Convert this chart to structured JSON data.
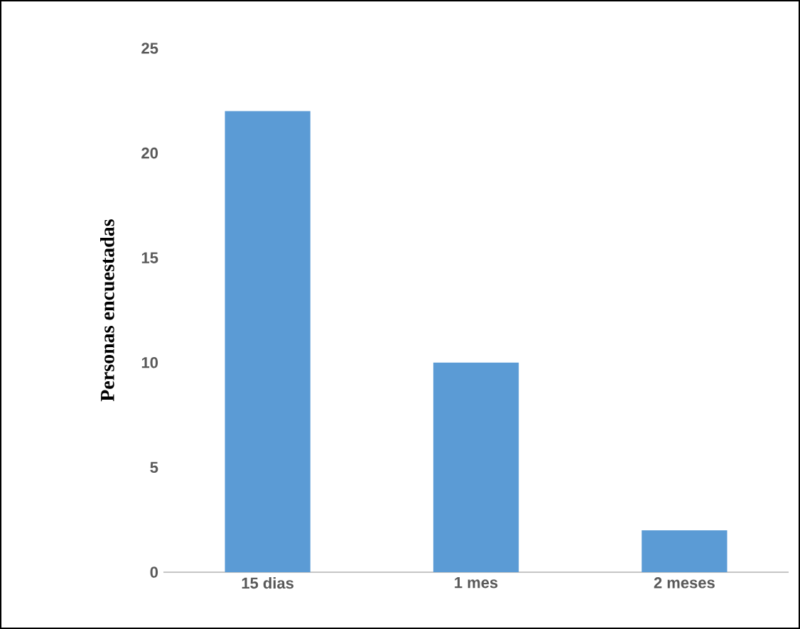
{
  "chart_data": {
    "type": "bar",
    "ylabel": "Personas encuestadas",
    "categories": [
      "15 dias",
      "1 mes",
      "2 meses"
    ],
    "values": [
      22,
      10,
      2
    ],
    "color": "#5b9bd5",
    "ylim": [
      0,
      25
    ],
    "yticks": [
      0,
      5,
      10,
      15,
      20,
      25
    ]
  }
}
